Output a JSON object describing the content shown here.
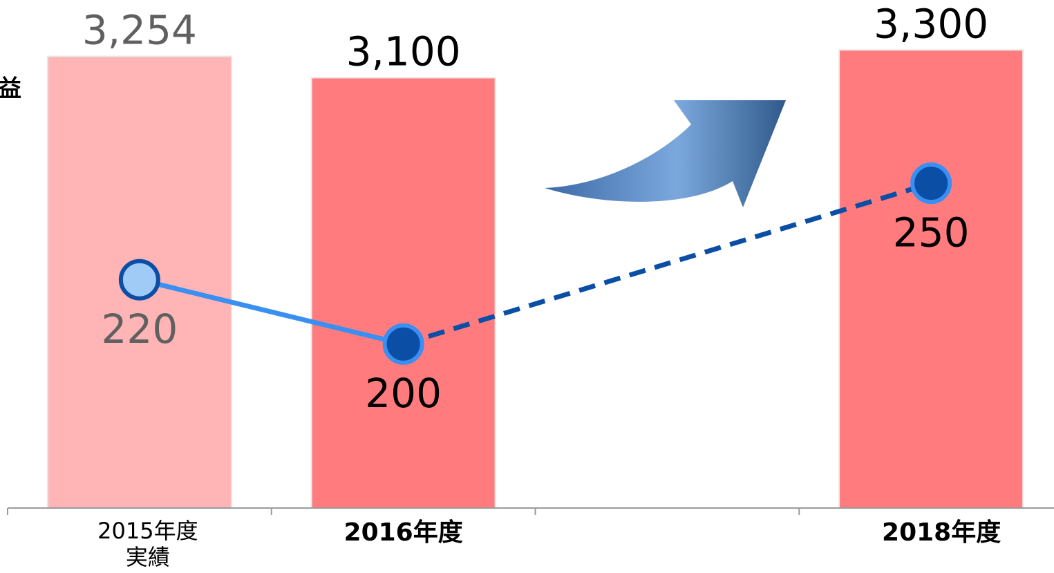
{
  "chart_data": {
    "type": "bar-line",
    "y_label": "益",
    "categories": [
      [
        "2015年度",
        "実績"
      ],
      "2016年度",
      null,
      "2018年度"
    ],
    "ylim": [
      0,
      3660
    ],
    "y2lim": [
      149,
      307
    ],
    "series": [
      {
        "type": "bar",
        "colors": [
          "#ffb4b5",
          "#ff7b7e",
          null,
          "#ff7b7e"
        ],
        "label_colors": [
          "#606060",
          "#000000",
          null,
          "#000000"
        ],
        "values": [
          3254,
          3100,
          null,
          3300
        ],
        "value_labels": [
          "3,254",
          "3,100",
          null,
          "3,300"
        ]
      },
      {
        "type": "line",
        "axis": "y2",
        "values": [
          220,
          200,
          null,
          250
        ],
        "point_fills": [
          "#9fcbf6",
          "#0a4ea6",
          null,
          "#0a4ea6"
        ],
        "point_strokes": [
          "#0a4ea6",
          "#3a8ff2",
          null,
          "#3a8ff2"
        ],
        "label_colors": [
          "#606060",
          "#000000",
          null,
          "#000000"
        ],
        "segments": [
          {
            "from": 0,
            "to": 1,
            "color": "#3a8ff2",
            "dashed": false
          },
          {
            "from": 1,
            "to": 3,
            "color": "#0a4ea6",
            "dashed": true
          }
        ]
      }
    ]
  }
}
